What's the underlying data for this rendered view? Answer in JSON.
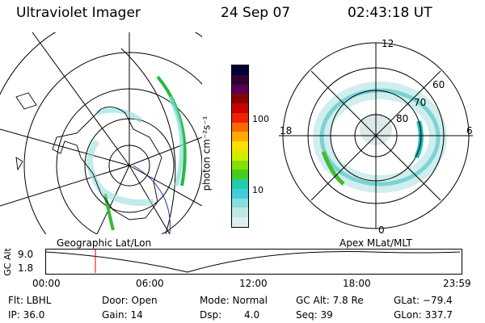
{
  "header": {
    "instrument": "Ultraviolet Imager",
    "date": "24 Sep 07",
    "time": "02:43:18 UT"
  },
  "left_map": {
    "label": "Geographic Lat/Lon"
  },
  "colorbar": {
    "unit_label": "photon cm⁻²s⁻¹",
    "ticks": [
      "100",
      "10"
    ],
    "colors": [
      "#000033",
      "#330033",
      "#550055",
      "#880000",
      "#cc0000",
      "#ee2200",
      "#ff6600",
      "#ffaa00",
      "#ffdd00",
      "#ccee00",
      "#88dd00",
      "#44cc22",
      "#22ccaa",
      "#44ccdd",
      "#88dddd",
      "#bbe8e8",
      "#ddf0f0"
    ]
  },
  "right_map": {
    "label": "Apex MLat/MLT",
    "mlt_labels": [
      "12",
      "18",
      "6",
      "0"
    ],
    "lat_labels": [
      "60",
      "70",
      "80"
    ]
  },
  "altitude_plot": {
    "axis_label": "GC Alt",
    "y_ticks": [
      "9.0",
      "1.8"
    ],
    "x_ticks": [
      "00:00",
      "06:00",
      "12:00",
      "18:00",
      "23:59"
    ],
    "marker_color": "#dd0000"
  },
  "info": {
    "flt": "Flt: LBHL",
    "ip": "IP: 36.0",
    "door": "Door: Open",
    "gain": "Gain: 14",
    "mode": "Mode: Normal",
    "dsp_label": "Dsp:",
    "dsp_value": "4.0",
    "gc_alt": "GC Alt: 7.8 Re",
    "seq": "Seq: 39",
    "glat": "GLat: −79.4",
    "glon": "GLon: 337.7"
  }
}
